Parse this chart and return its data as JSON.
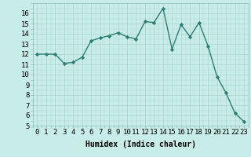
{
  "x": [
    0,
    1,
    2,
    3,
    4,
    5,
    6,
    7,
    8,
    9,
    10,
    11,
    12,
    13,
    14,
    15,
    16,
    17,
    18,
    19,
    20,
    21,
    22,
    23
  ],
  "y": [
    12,
    12,
    12,
    11.1,
    11.2,
    11.7,
    13.3,
    13.6,
    13.8,
    14.1,
    13.7,
    13.5,
    15.2,
    15.1,
    16.5,
    12.5,
    14.9,
    13.7,
    15.1,
    12.8,
    9.8,
    8.2,
    6.2,
    5.4
  ],
  "line_color": "#2e7d72",
  "marker": "D",
  "markersize": 2.2,
  "linewidth": 1.0,
  "bg_color": "#c8ede8",
  "grid_major_color": "#b0d8d2",
  "grid_minor_color": "#c0e2dc",
  "xlabel": "Humidex (Indice chaleur)",
  "ylim": [
    5,
    17
  ],
  "xlim": [
    -0.5,
    23.5
  ],
  "yticks": [
    5,
    6,
    7,
    8,
    9,
    10,
    11,
    12,
    13,
    14,
    15,
    16
  ],
  "xticks": [
    0,
    1,
    2,
    3,
    4,
    5,
    6,
    7,
    8,
    9,
    10,
    11,
    12,
    13,
    14,
    15,
    16,
    17,
    18,
    19,
    20,
    21,
    22,
    23
  ],
  "xlabel_fontsize": 7,
  "tick_fontsize": 6.5
}
